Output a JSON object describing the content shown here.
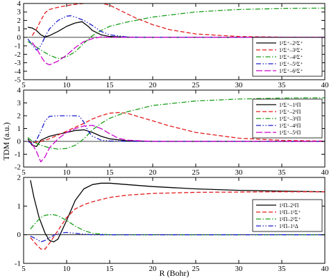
{
  "figure": {
    "xlabel": "R (Bohr)",
    "ylabel": "TDM (a.u.)"
  },
  "chart_data": [
    {
      "type": "line",
      "xlim": [
        5,
        40
      ],
      "ylim": [
        -5,
        4
      ],
      "xticks": [
        5,
        10,
        15,
        20,
        25,
        30,
        35,
        40
      ],
      "yticks": [
        -5,
        -4,
        -3,
        -2,
        -1,
        0,
        1,
        2,
        3,
        4
      ],
      "xtick_labels": [
        "5",
        "10",
        "15",
        "20",
        "25",
        "30",
        "35",
        "40"
      ],
      "ytick_labels": [
        "-5",
        "-4",
        "-3",
        "-2",
        "-1",
        "0",
        "1",
        "2",
        "3",
        "4"
      ],
      "grid": false,
      "legend_position": "right",
      "series": [
        {
          "name": "1¹Σ⁺–2¹Σ⁺",
          "color": "#000000",
          "dash": "solid",
          "x": [
            5.5,
            6,
            6.5,
            7,
            7.5,
            8,
            9,
            10,
            11,
            11.8,
            12.5,
            13,
            14,
            15,
            17,
            20,
            25,
            30,
            35,
            40
          ],
          "y": [
            1.2,
            1.1,
            0.8,
            0.3,
            0.05,
            0.2,
            0.7,
            1.3,
            1.7,
            1.85,
            1.3,
            0.8,
            0.3,
            0.1,
            0.02,
            0,
            0,
            0,
            0,
            0
          ]
        },
        {
          "name": "1¹Σ⁺–3¹Σ⁺",
          "color": "#e41a1c",
          "dash": "dashed",
          "x": [
            6,
            6.5,
            7,
            7.5,
            8,
            9,
            10,
            11,
            12,
            13,
            13.5,
            14,
            15,
            16,
            18,
            20,
            22,
            25,
            30,
            35,
            40
          ],
          "y": [
            0.2,
            1.0,
            2.0,
            2.9,
            3.3,
            3.55,
            3.75,
            3.9,
            4.0,
            4.1,
            4.1,
            4.05,
            3.8,
            3.3,
            2.3,
            1.5,
            0.9,
            0.4,
            0.1,
            0.02,
            0
          ]
        },
        {
          "name": "1¹Σ⁺–4¹Σ⁺",
          "color": "#1a9e1a",
          "dash": "dashdot",
          "x": [
            5.5,
            6,
            7,
            8,
            9,
            10,
            11,
            12,
            13,
            14,
            15,
            17,
            20,
            25,
            30,
            35,
            40
          ],
          "y": [
            -0.5,
            -0.8,
            -1.5,
            -2.1,
            -2.5,
            -2.3,
            -1.7,
            -0.7,
            0.2,
            0.8,
            1.3,
            1.8,
            2.4,
            3.0,
            3.3,
            3.4,
            3.45
          ]
        },
        {
          "name": "1¹Σ⁺–5¹Σ⁺",
          "color": "#1a1acc",
          "dash": "dashdotdot",
          "x": [
            5.5,
            6,
            6.5,
            7,
            7.5,
            8,
            9,
            10,
            10.5,
            11,
            12,
            13,
            14,
            15,
            17,
            20,
            25,
            30,
            35,
            40
          ],
          "y": [
            -0.2,
            -0.9,
            -1.5,
            -1.0,
            0.1,
            1.0,
            2.0,
            2.5,
            2.55,
            2.4,
            2.0,
            1.4,
            0.7,
            0.3,
            0.05,
            0,
            0,
            0,
            0,
            0
          ]
        },
        {
          "name": "1¹Σ⁺–6¹Σ⁺",
          "color": "#cc00cc",
          "dash": "longdash",
          "x": [
            6,
            6.5,
            7,
            7.5,
            8,
            9,
            10,
            11,
            12,
            13,
            14,
            15,
            17,
            20,
            25,
            30,
            35,
            40
          ],
          "y": [
            -0.6,
            -1.3,
            -2.2,
            -3.0,
            -3.25,
            -2.8,
            -2.1,
            -1.2,
            -0.5,
            -0.15,
            0.05,
            0,
            0,
            0,
            0,
            0,
            0,
            0
          ]
        }
      ]
    },
    {
      "type": "line",
      "xlim": [
        5,
        40
      ],
      "ylim": [
        -2,
        4
      ],
      "xticks": [
        5,
        10,
        15,
        20,
        25,
        30,
        35,
        40
      ],
      "yticks": [
        -2,
        -1,
        0,
        1,
        2,
        3,
        4
      ],
      "xtick_labels": [
        "5",
        "10",
        "15",
        "20",
        "25",
        "30",
        "35",
        "40"
      ],
      "ytick_labels": [
        "-2",
        "-1",
        "0",
        "1",
        "2",
        "3",
        "4"
      ],
      "grid": false,
      "legend_position": "right",
      "series": [
        {
          "name": "1¹Σ⁺–1¹Π",
          "color": "#000000",
          "dash": "solid",
          "x": [
            5.5,
            6,
            6.5,
            7,
            8,
            9,
            10,
            11,
            12,
            13,
            14,
            15,
            17,
            20,
            25,
            30,
            35,
            40
          ],
          "y": [
            0.2,
            -0.3,
            -0.4,
            0.1,
            0.4,
            0.55,
            0.7,
            0.85,
            0.9,
            0.7,
            0.4,
            0.2,
            0.05,
            0,
            0,
            0,
            0,
            0
          ]
        },
        {
          "name": "1¹Σ⁺–2¹Π",
          "color": "#e41a1c",
          "dash": "dashed",
          "x": [
            5.5,
            6,
            7,
            8,
            9,
            10,
            11,
            12,
            13,
            14,
            15,
            16,
            17,
            18,
            20,
            22,
            25,
            30,
            35,
            40
          ],
          "y": [
            0,
            -0.1,
            0,
            0.2,
            0.5,
            0.8,
            1.1,
            1.4,
            1.75,
            2.0,
            2.2,
            2.25,
            2.2,
            2.0,
            1.6,
            1.2,
            0.7,
            0.25,
            0.08,
            0.02
          ]
        },
        {
          "name": "1¹Σ⁺–3¹Π",
          "color": "#1a9e1a",
          "dash": "dashdot",
          "x": [
            5.5,
            6,
            7,
            8,
            9,
            10,
            11,
            12,
            13,
            14,
            15,
            17,
            20,
            25,
            30,
            35,
            40
          ],
          "y": [
            0.3,
            0,
            -0.3,
            -0.5,
            -0.6,
            -0.55,
            -0.3,
            0.2,
            0.9,
            1.4,
            1.8,
            2.3,
            2.8,
            3.15,
            3.3,
            3.38,
            3.4
          ]
        },
        {
          "name": "1¹Σ⁺–4¹Π",
          "color": "#1a1acc",
          "dash": "dashdotdot",
          "x": [
            5.5,
            6,
            6.5,
            7,
            7.5,
            8,
            9,
            10,
            11,
            11.5,
            12,
            12.5,
            13,
            14,
            15,
            17,
            20,
            25,
            30,
            35,
            40
          ],
          "y": [
            0,
            -0.2,
            0.1,
            0.8,
            1.6,
            1.95,
            2.0,
            2.0,
            2.0,
            1.95,
            1.5,
            0.8,
            0.4,
            0.1,
            0.03,
            0,
            0,
            0,
            0,
            0,
            0
          ]
        },
        {
          "name": "1¹Σ⁺–5¹Π",
          "color": "#cc00cc",
          "dash": "longdash",
          "x": [
            6,
            6.5,
            7,
            7.5,
            8,
            9,
            10,
            11,
            12,
            13,
            14,
            15,
            16,
            17,
            20,
            25,
            30,
            35,
            40
          ],
          "y": [
            -0.2,
            -0.8,
            -1.6,
            -1.2,
            -0.5,
            0.2,
            0.7,
            1.0,
            1.2,
            1.25,
            1.0,
            0.6,
            0.25,
            0.1,
            0,
            0,
            0,
            0,
            0
          ]
        }
      ]
    },
    {
      "type": "line",
      "xlim": [
        5,
        40
      ],
      "ylim": [
        -1,
        2
      ],
      "xticks": [
        5,
        10,
        15,
        20,
        25,
        30,
        35,
        40
      ],
      "yticks": [
        -1,
        0,
        1,
        2
      ],
      "xtick_labels": [
        "5",
        "10",
        "15",
        "20",
        "25",
        "30",
        "35",
        "40"
      ],
      "ytick_labels": [
        "-1",
        "0",
        "1",
        "2"
      ],
      "grid": false,
      "legend_position": "right",
      "series": [
        {
          "name": "1¹Π–2¹Π",
          "color": "#000000",
          "dash": "solid",
          "x": [
            5.8,
            6.2,
            6.8,
            7.5,
            8,
            8.5,
            9,
            10,
            11,
            12,
            13,
            14,
            15,
            17,
            20,
            25,
            30,
            35,
            40
          ],
          "y": [
            1.9,
            1.3,
            0.6,
            0.05,
            -0.2,
            -0.25,
            -0.15,
            0.5,
            1.2,
            1.6,
            1.75,
            1.8,
            1.8,
            1.75,
            1.68,
            1.6,
            1.55,
            1.52,
            1.5
          ]
        },
        {
          "name": "1¹Π–1¹Σ⁺",
          "color": "#e41a1c",
          "dash": "dashed",
          "x": [
            5.8,
            6.5,
            7,
            7.5,
            8,
            9,
            10,
            11,
            12,
            13,
            15,
            17,
            20,
            25,
            30,
            35,
            40
          ],
          "y": [
            -0.1,
            -0.35,
            -0.5,
            -0.5,
            -0.3,
            0.15,
            0.6,
            0.9,
            1.05,
            1.15,
            1.3,
            1.38,
            1.44,
            1.48,
            1.49,
            1.5,
            1.5
          ]
        },
        {
          "name": "1¹Π–2¹Σ⁺",
          "color": "#1a9e1a",
          "dash": "dashdot",
          "x": [
            5.8,
            6.5,
            7,
            7.5,
            8,
            8.5,
            9,
            10,
            11,
            12,
            13,
            14,
            15,
            17,
            20,
            25,
            30,
            35,
            40
          ],
          "y": [
            0.2,
            0.45,
            0.6,
            0.68,
            0.7,
            0.7,
            0.66,
            0.5,
            0.3,
            0.15,
            0.05,
            0.02,
            0,
            0,
            0,
            0,
            0,
            0,
            0
          ]
        },
        {
          "name": "1¹Π–1¹Δ",
          "color": "#1a1acc",
          "dash": "dashdotdot",
          "x": [
            5.8,
            6.5,
            7,
            7.5,
            8,
            9,
            10,
            11,
            12,
            13,
            15,
            20,
            25,
            30,
            35,
            40
          ],
          "y": [
            -0.05,
            -0.15,
            -0.25,
            -0.2,
            -0.1,
            0.05,
            0.08,
            0.05,
            0.02,
            0,
            0,
            0,
            0,
            0,
            0,
            0
          ]
        }
      ]
    }
  ]
}
